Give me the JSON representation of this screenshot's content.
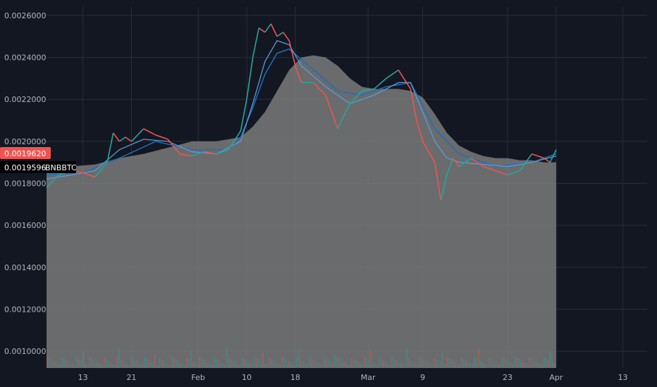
{
  "colors": {
    "background": "#131722",
    "grid": "#2a2e39",
    "text": "#b2b5be",
    "up": "#26a69a",
    "down": "#ef5350",
    "ma_fast": "#5b9bd5",
    "ma_slow": "#1e6fb8",
    "area_fill": "#7a7a7a",
    "last_price_tag": "#ef5350",
    "symbol_tag": "#000000"
  },
  "chart_data": {
    "type": "line",
    "symbol": "BNBBTC",
    "last_price": "0.0019620",
    "symbol_price": "0.0019596",
    "symbol_label": "BNBBTC",
    "ylim": [
      0.00092,
      0.00264
    ],
    "y_ticks": [
      "0.0026000",
      "0.0024000",
      "0.0022000",
      "0.0020000",
      "0.0018000",
      "0.0016000",
      "0.0014000",
      "0.0012000",
      "0.0010000"
    ],
    "y_tick_values": [
      0.0026,
      0.0024,
      0.0022,
      0.002,
      0.0018,
      0.0016,
      0.0014,
      0.0012,
      0.001
    ],
    "x_ticks": [
      "13",
      "21",
      "Feb",
      "10",
      "18",
      "Mar",
      "9",
      "23",
      "Apr",
      "13"
    ],
    "x_tick_index": [
      8,
      16,
      27,
      35,
      43,
      55,
      64,
      78,
      86,
      97
    ],
    "x_range": [
      2,
      101
    ],
    "x_note": "index = days since Jan 5",
    "price": {
      "x": [
        2,
        4,
        6,
        8,
        10,
        12,
        13,
        14,
        15,
        16,
        18,
        20,
        22,
        24,
        26,
        28,
        30,
        32,
        34,
        35,
        36,
        37,
        38,
        39,
        40,
        41,
        42,
        43,
        44,
        46,
        48,
        50,
        52,
        54,
        56,
        58,
        60,
        62,
        63,
        64,
        66,
        67,
        68,
        69,
        70,
        72,
        74,
        76,
        78,
        80,
        82,
        84,
        85,
        86
      ],
      "y": [
        0.00178,
        0.00184,
        0.00186,
        0.00185,
        0.00183,
        0.0019,
        0.00204,
        0.002,
        0.00202,
        0.002,
        0.00206,
        0.00203,
        0.00201,
        0.00194,
        0.00193,
        0.00195,
        0.00194,
        0.00196,
        0.00205,
        0.0022,
        0.0024,
        0.00254,
        0.00252,
        0.00256,
        0.0025,
        0.00252,
        0.00248,
        0.00236,
        0.00228,
        0.00228,
        0.00222,
        0.00206,
        0.00218,
        0.00224,
        0.00225,
        0.0023,
        0.00234,
        0.00225,
        0.0021,
        0.002,
        0.0019,
        0.00172,
        0.00184,
        0.00192,
        0.00188,
        0.00192,
        0.00188,
        0.00186,
        0.00184,
        0.00186,
        0.00194,
        0.00192,
        0.0019,
        0.00196
      ]
    },
    "ma_fast": {
      "x": [
        2,
        6,
        10,
        14,
        18,
        22,
        26,
        30,
        34,
        36,
        38,
        40,
        42,
        44,
        48,
        52,
        56,
        60,
        62,
        64,
        66,
        68,
        70,
        74,
        78,
        82,
        86
      ],
      "y": [
        0.00182,
        0.00184,
        0.00186,
        0.00196,
        0.00201,
        0.002,
        0.00195,
        0.00194,
        0.002,
        0.00218,
        0.00238,
        0.00248,
        0.00246,
        0.00236,
        0.00226,
        0.00218,
        0.00222,
        0.00228,
        0.00228,
        0.00214,
        0.002,
        0.00192,
        0.0019,
        0.00189,
        0.00188,
        0.0019,
        0.00193
      ]
    },
    "ma_slow": {
      "x": [
        2,
        8,
        14,
        20,
        26,
        32,
        34,
        36,
        38,
        40,
        42,
        46,
        50,
        54,
        58,
        62,
        66,
        70,
        76,
        82,
        86
      ],
      "y": [
        0.00184,
        0.00185,
        0.00192,
        0.002,
        0.00196,
        0.00196,
        0.00202,
        0.00216,
        0.00232,
        0.00242,
        0.00244,
        0.00234,
        0.00224,
        0.00222,
        0.00226,
        0.00228,
        0.00206,
        0.00194,
        0.00188,
        0.0019,
        0.00194
      ]
    },
    "ma_area": {
      "x": [
        2,
        6,
        10,
        14,
        18,
        22,
        26,
        30,
        34,
        36,
        38,
        40,
        42,
        44,
        46,
        48,
        50,
        52,
        54,
        56,
        58,
        60,
        62,
        64,
        66,
        68,
        70,
        72,
        74,
        76,
        78,
        80,
        82,
        84,
        86
      ],
      "y": [
        0.00187,
        0.00188,
        0.00189,
        0.00192,
        0.00194,
        0.00197,
        0.002,
        0.002,
        0.00202,
        0.00207,
        0.00214,
        0.00224,
        0.00234,
        0.0024,
        0.00241,
        0.0024,
        0.00236,
        0.0023,
        0.00226,
        0.00225,
        0.00225,
        0.00225,
        0.00224,
        0.00221,
        0.00213,
        0.00204,
        0.00198,
        0.00195,
        0.00193,
        0.00192,
        0.00192,
        0.00191,
        0.00191,
        0.0019,
        0.0019
      ]
    }
  }
}
